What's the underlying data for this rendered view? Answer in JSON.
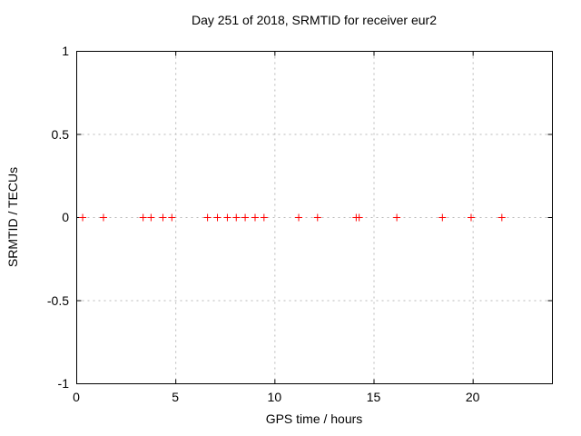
{
  "colors": {
    "background": "#ffffff",
    "axis": "#000000",
    "grid": "#b8b8b8",
    "text": "#000000",
    "marker": "#ff0000"
  },
  "chart_data": {
    "type": "scatter",
    "title": "Day 251 of 2018, SRMTID for receiver eur2",
    "xlabel": "GPS time / hours",
    "ylabel": "SRMTID / TECUs",
    "xlim": [
      0,
      24
    ],
    "ylim": [
      -1,
      1
    ],
    "x_ticks": [
      0,
      5,
      10,
      15,
      20
    ],
    "x_tick_labels": [
      "0",
      "5",
      "10",
      "15",
      "20"
    ],
    "y_ticks": [
      1,
      0.5,
      0,
      -0.5,
      -1
    ],
    "y_tick_labels": [
      "1",
      "0.5",
      "0",
      "-0.5",
      "-1"
    ],
    "grid": true,
    "legend": "none",
    "marker": "plus",
    "series": [
      {
        "name": "SRMTID",
        "x": [
          0.3,
          1.35,
          3.35,
          3.75,
          4.35,
          4.8,
          6.6,
          7.1,
          7.6,
          8.05,
          8.5,
          9.0,
          9.45,
          11.2,
          12.15,
          14.1,
          14.25,
          16.15,
          18.45,
          19.9,
          21.45
        ],
        "y": [
          0,
          0,
          0,
          0,
          0,
          0,
          0,
          0,
          0,
          0,
          0,
          0,
          0,
          0,
          0,
          0,
          0,
          0,
          0,
          0,
          0
        ]
      }
    ]
  }
}
